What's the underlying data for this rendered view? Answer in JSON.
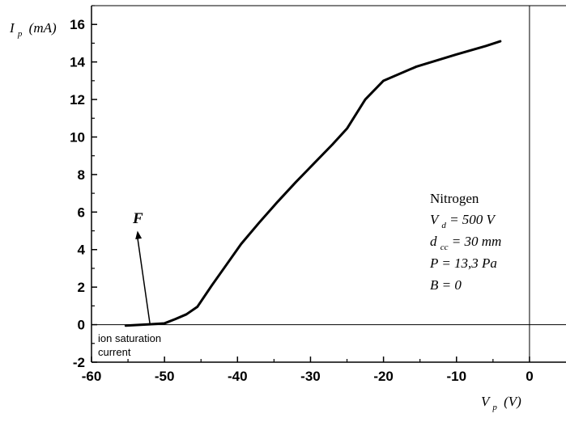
{
  "chart_data": {
    "type": "line",
    "x_axis": {
      "label_main": "V",
      "label_sub": "p",
      "label_unit": "(V)",
      "xlim": [
        -60,
        5
      ],
      "ticks": [
        -60,
        -50,
        -40,
        -30,
        -20,
        -10,
        0
      ],
      "tick_labels": [
        "-60",
        "-50",
        "-40",
        "-30",
        "-20",
        "-10",
        "0"
      ]
    },
    "y_axis": {
      "label_main": "I",
      "label_sub": "p",
      "label_unit": "(mA)",
      "ylim": [
        -2,
        17
      ],
      "ticks": [
        -2,
        0,
        2,
        4,
        6,
        8,
        10,
        12,
        14,
        16
      ],
      "tick_labels": [
        "-2",
        "0",
        "2",
        "4",
        "6",
        "8",
        "10",
        "12",
        "14",
        "16"
      ]
    },
    "series": [
      {
        "x": [
          -55.3,
          -52,
          -50,
          -48.5,
          -47,
          -45.5,
          -43.5,
          -41.5,
          -39.5,
          -37,
          -34.5,
          -32,
          -29.5,
          -27,
          -25,
          -22.5,
          -20,
          -15.5,
          -10,
          -6,
          -4
        ],
        "y": [
          -0.05,
          0.02,
          0.07,
          0.3,
          0.55,
          0.95,
          2.1,
          3.2,
          4.3,
          5.45,
          6.55,
          7.6,
          8.6,
          9.6,
          10.45,
          12.0,
          13.0,
          13.75,
          14.4,
          14.85,
          15.1
        ]
      }
    ],
    "reference_lines": {
      "horizontal_y": 0,
      "vertical_x": 0
    },
    "annotations": {
      "arrow_label": "F",
      "arrow_tip": {
        "x": -53.7,
        "y": 5.0
      },
      "arrow_base": {
        "x": -52,
        "y": 0.05
      },
      "ion_saturation_line1": "ion saturation",
      "ion_saturation_line2": "current",
      "legend_title": "Nitrogen",
      "params": [
        {
          "main": "V",
          "sub": "d",
          "rest": " = 500 V"
        },
        {
          "main": "d",
          "sub": "cc",
          "rest": " = 30 mm"
        },
        {
          "main": "P = 13,3 Pa",
          "sub": "",
          "rest": ""
        },
        {
          "main": "B = 0",
          "sub": "",
          "rest": ""
        }
      ]
    }
  }
}
